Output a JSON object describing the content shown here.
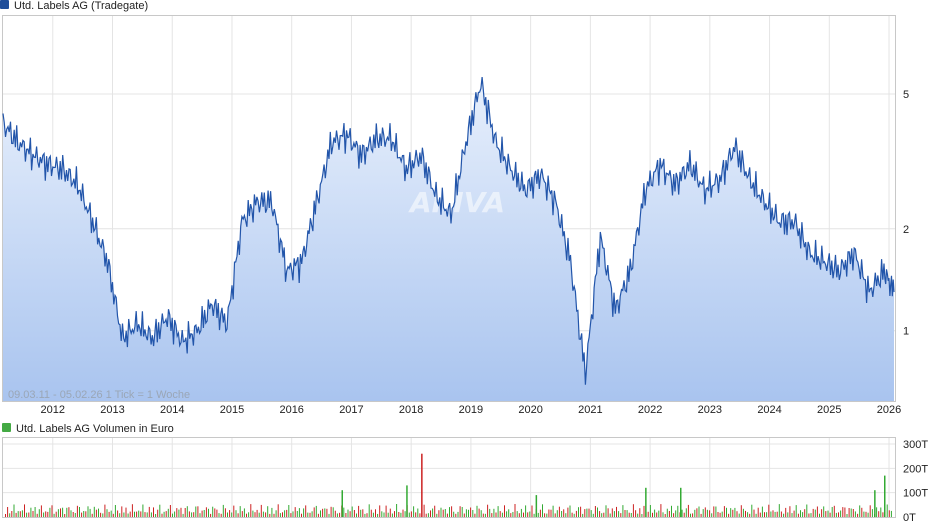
{
  "chart_data": [
    {
      "type": "line",
      "legend": "Utd. Labels AG (Tradegate)",
      "y_scale": "log",
      "ylim": [
        0.62,
        8.5
      ],
      "y_ticks": [
        "5",
        "2",
        "1"
      ],
      "x_ticks": [
        "2012",
        "2013",
        "2014",
        "2015",
        "2016",
        "2017",
        "2018",
        "2019",
        "2020",
        "2021",
        "2022",
        "2023",
        "2024",
        "2025",
        "2026"
      ],
      "date_range_note": "09.03.11 - 05.02.26   1 Tick = 1 Woche",
      "watermark": "ARIVA",
      "colors": {
        "line": "#2255aa",
        "fill_top": "#e8f0fc",
        "fill_bottom": "#a9c4ef",
        "legend": "#1f4e9a"
      },
      "series": [
        {
          "x": [
            "2011-03",
            "2011-06",
            "2011-09",
            "2011-12",
            "2012-03",
            "2012-06",
            "2012-09",
            "2012-12",
            "2013-03",
            "2013-06",
            "2013-09",
            "2013-12",
            "2014-03",
            "2014-06",
            "2014-09",
            "2014-12",
            "2015-03",
            "2015-06",
            "2015-09",
            "2015-12",
            "2016-03",
            "2016-06",
            "2016-09",
            "2016-12",
            "2017-03",
            "2017-06",
            "2017-09",
            "2017-12",
            "2018-03",
            "2018-06",
            "2018-09",
            "2018-12",
            "2019-03",
            "2019-06",
            "2019-09",
            "2019-12",
            "2020-03",
            "2020-06",
            "2020-09",
            "2020-12",
            "2021-03",
            "2021-06",
            "2021-09",
            "2021-12",
            "2022-03",
            "2022-06",
            "2022-09",
            "2022-12",
            "2023-03",
            "2023-06",
            "2023-09",
            "2023-12",
            "2024-03",
            "2024-06",
            "2024-09",
            "2024-12",
            "2025-03",
            "2025-06",
            "2025-09",
            "2025-12",
            "2026-02"
          ],
          "y": [
            4.1,
            3.6,
            3.3,
            3.1,
            3.0,
            2.7,
            2.1,
            1.6,
            0.95,
            1.05,
            0.95,
            1.1,
            0.93,
            1.0,
            1.2,
            1.05,
            2.1,
            2.4,
            2.4,
            1.5,
            1.6,
            2.4,
            3.6,
            3.8,
            3.3,
            3.7,
            3.7,
            3.0,
            3.3,
            2.5,
            2.2,
            3.6,
            5.4,
            3.6,
            3.0,
            2.6,
            2.9,
            2.4,
            1.6,
            0.75,
            1.9,
            1.15,
            1.5,
            2.6,
            3.1,
            2.7,
            3.1,
            2.6,
            2.8,
            3.5,
            2.8,
            2.4,
            2.1,
            2.1,
            1.7,
            1.6,
            1.5,
            1.7,
            1.3,
            1.5,
            1.3
          ]
        }
      ]
    },
    {
      "type": "bar",
      "legend": "Utd. Labels AG Volumen in Euro",
      "y_ticks": [
        "300T",
        "200T",
        "100T",
        "0T"
      ],
      "ylim": [
        0,
        300
      ],
      "colors": {
        "up": "#33aa33",
        "down": "#cc2222",
        "legend": "#44aa44"
      },
      "notable_bars": [
        {
          "x": "2018-03",
          "value": 260,
          "color": "down"
        },
        {
          "x": "2017-12",
          "value": 130,
          "color": "up"
        },
        {
          "x": "2016-11",
          "value": 110,
          "color": "up"
        },
        {
          "x": "2020-02",
          "value": 90,
          "color": "up"
        },
        {
          "x": "2021-12",
          "value": 120,
          "color": "up"
        },
        {
          "x": "2022-07",
          "value": 120,
          "color": "up"
        },
        {
          "x": "2025-12",
          "value": 170,
          "color": "up"
        },
        {
          "x": "2025-10",
          "value": 110,
          "color": "up"
        }
      ]
    }
  ]
}
